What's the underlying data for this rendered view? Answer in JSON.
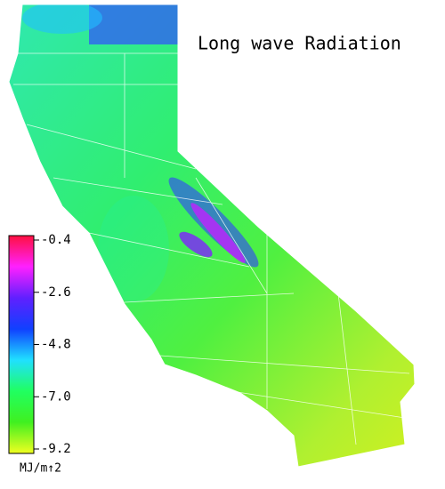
{
  "title": "Long wave Radiation",
  "colorbar": {
    "unit": "MJ/m↑2",
    "range": [
      -0.4,
      -9.2
    ],
    "ticks": [
      -0.4,
      -2.6,
      -4.8,
      {
        "value": -7,
        "label": "-7.0"
      },
      -9.2
    ],
    "colors": [
      "#ff1040",
      "#ff20ff",
      "#6020ff",
      "#1040ff",
      "#20e0ff",
      "#20ff60",
      "#40f020",
      "#f0ff20"
    ]
  }
}
